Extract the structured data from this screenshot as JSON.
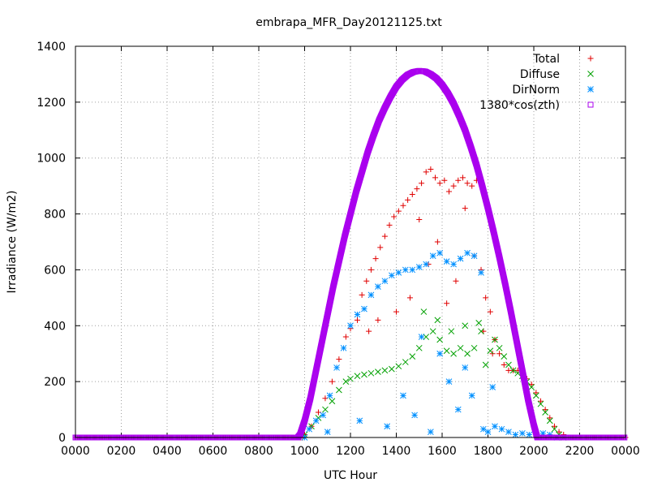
{
  "chart_data": {
    "type": "scatter",
    "title": "embrapa_MFR_Day20121125.txt",
    "xlabel": "UTC Hour",
    "ylabel": "Irradiance (W/m2)",
    "xlim": [
      0,
      24
    ],
    "ylim": [
      0,
      1400
    ],
    "x_ticks": [
      {
        "value": 0,
        "label": "0000"
      },
      {
        "value": 2,
        "label": "0200"
      },
      {
        "value": 4,
        "label": "0400"
      },
      {
        "value": 6,
        "label": "0600"
      },
      {
        "value": 8,
        "label": "0800"
      },
      {
        "value": 10,
        "label": "1000"
      },
      {
        "value": 12,
        "label": "1200"
      },
      {
        "value": 14,
        "label": "1400"
      },
      {
        "value": 16,
        "label": "1600"
      },
      {
        "value": 18,
        "label": "1800"
      },
      {
        "value": 20,
        "label": "2000"
      },
      {
        "value": 22,
        "label": "2200"
      },
      {
        "value": 24,
        "label": "0000"
      }
    ],
    "y_ticks": [
      0,
      200,
      400,
      600,
      800,
      1000,
      1200,
      1400
    ],
    "grid": true,
    "legend_position": "top-right",
    "series": [
      {
        "name": "Total",
        "color": "#e00000",
        "marker": "plus",
        "points": [
          [
            10.0,
            10
          ],
          [
            10.3,
            40
          ],
          [
            10.6,
            90
          ],
          [
            10.9,
            140
          ],
          [
            11.2,
            200
          ],
          [
            11.5,
            280
          ],
          [
            11.8,
            360
          ],
          [
            12.0,
            390
          ],
          [
            12.3,
            420
          ],
          [
            12.5,
            510
          ],
          [
            12.7,
            560
          ],
          [
            12.9,
            600
          ],
          [
            13.1,
            640
          ],
          [
            13.3,
            680
          ],
          [
            13.5,
            720
          ],
          [
            13.7,
            760
          ],
          [
            13.9,
            790
          ],
          [
            14.1,
            810
          ],
          [
            14.3,
            830
          ],
          [
            14.5,
            850
          ],
          [
            14.7,
            870
          ],
          [
            14.9,
            890
          ],
          [
            15.1,
            910
          ],
          [
            15.3,
            950
          ],
          [
            15.5,
            960
          ],
          [
            15.7,
            930
          ],
          [
            15.9,
            910
          ],
          [
            16.1,
            920
          ],
          [
            16.3,
            880
          ],
          [
            16.5,
            900
          ],
          [
            16.7,
            920
          ],
          [
            16.9,
            930
          ],
          [
            17.1,
            910
          ],
          [
            17.3,
            900
          ],
          [
            17.5,
            920
          ],
          [
            17.7,
            600
          ],
          [
            17.9,
            500
          ],
          [
            18.1,
            450
          ],
          [
            18.3,
            350
          ],
          [
            18.5,
            300
          ],
          [
            18.7,
            260
          ],
          [
            18.9,
            240
          ],
          [
            19.1,
            240
          ],
          [
            19.3,
            240
          ],
          [
            19.5,
            230
          ],
          [
            19.7,
            210
          ],
          [
            19.9,
            190
          ],
          [
            20.1,
            160
          ],
          [
            20.3,
            130
          ],
          [
            20.5,
            100
          ],
          [
            20.7,
            70
          ],
          [
            20.9,
            40
          ],
          [
            21.1,
            20
          ],
          [
            21.3,
            10
          ],
          [
            21.5,
            0
          ],
          [
            12.8,
            380
          ],
          [
            13.2,
            420
          ],
          [
            14.0,
            450
          ],
          [
            14.6,
            500
          ],
          [
            15.0,
            780
          ],
          [
            15.4,
            620
          ],
          [
            15.8,
            700
          ],
          [
            16.2,
            480
          ],
          [
            16.6,
            560
          ],
          [
            17.0,
            820
          ],
          [
            17.4,
            650
          ],
          [
            17.8,
            380
          ],
          [
            18.2,
            300
          ]
        ]
      },
      {
        "name": "Diffuse",
        "color": "#00a000",
        "marker": "cross",
        "points": [
          [
            10.0,
            10
          ],
          [
            10.3,
            40
          ],
          [
            10.6,
            70
          ],
          [
            10.9,
            100
          ],
          [
            11.2,
            130
          ],
          [
            11.5,
            170
          ],
          [
            11.8,
            200
          ],
          [
            12.0,
            210
          ],
          [
            12.3,
            220
          ],
          [
            12.6,
            225
          ],
          [
            12.9,
            230
          ],
          [
            13.2,
            235
          ],
          [
            13.5,
            240
          ],
          [
            13.8,
            245
          ],
          [
            14.1,
            255
          ],
          [
            14.4,
            270
          ],
          [
            14.7,
            290
          ],
          [
            15.0,
            320
          ],
          [
            15.3,
            360
          ],
          [
            15.6,
            380
          ],
          [
            15.9,
            350
          ],
          [
            16.2,
            310
          ],
          [
            16.5,
            300
          ],
          [
            16.8,
            320
          ],
          [
            17.1,
            300
          ],
          [
            17.4,
            320
          ],
          [
            17.7,
            380
          ],
          [
            17.9,
            260
          ],
          [
            18.1,
            310
          ],
          [
            18.3,
            350
          ],
          [
            18.5,
            320
          ],
          [
            18.7,
            290
          ],
          [
            18.9,
            260
          ],
          [
            19.1,
            240
          ],
          [
            19.3,
            230
          ],
          [
            19.5,
            220
          ],
          [
            19.7,
            200
          ],
          [
            19.9,
            180
          ],
          [
            20.1,
            150
          ],
          [
            20.3,
            120
          ],
          [
            20.5,
            90
          ],
          [
            20.7,
            60
          ],
          [
            20.9,
            30
          ],
          [
            21.1,
            10
          ],
          [
            21.3,
            0
          ],
          [
            15.2,
            450
          ],
          [
            15.8,
            420
          ],
          [
            16.4,
            380
          ],
          [
            17.0,
            400
          ],
          [
            17.6,
            410
          ]
        ]
      },
      {
        "name": "DirNorm",
        "color": "#0090ff",
        "marker": "star",
        "points": [
          [
            10.0,
            0
          ],
          [
            10.2,
            30
          ],
          [
            10.5,
            60
          ],
          [
            10.8,
            80
          ],
          [
            11.1,
            150
          ],
          [
            11.4,
            250
          ],
          [
            11.7,
            320
          ],
          [
            12.0,
            400
          ],
          [
            12.3,
            440
          ],
          [
            12.6,
            460
          ],
          [
            12.9,
            510
          ],
          [
            13.2,
            540
          ],
          [
            13.5,
            560
          ],
          [
            13.8,
            580
          ],
          [
            14.1,
            590
          ],
          [
            14.4,
            600
          ],
          [
            14.7,
            600
          ],
          [
            15.0,
            610
          ],
          [
            15.3,
            620
          ],
          [
            15.6,
            650
          ],
          [
            15.9,
            660
          ],
          [
            16.2,
            630
          ],
          [
            16.5,
            620
          ],
          [
            16.8,
            640
          ],
          [
            17.1,
            660
          ],
          [
            17.4,
            650
          ],
          [
            17.7,
            590
          ],
          [
            18.0,
            20
          ],
          [
            18.3,
            40
          ],
          [
            18.6,
            30
          ],
          [
            18.9,
            20
          ],
          [
            19.2,
            10
          ],
          [
            19.5,
            15
          ],
          [
            19.8,
            10
          ],
          [
            20.1,
            10
          ],
          [
            20.4,
            15
          ],
          [
            20.7,
            10
          ],
          [
            21.0,
            0
          ],
          [
            11.0,
            20
          ],
          [
            12.4,
            60
          ],
          [
            13.6,
            40
          ],
          [
            14.3,
            150
          ],
          [
            14.8,
            80
          ],
          [
            15.1,
            360
          ],
          [
            15.5,
            20
          ],
          [
            15.9,
            300
          ],
          [
            16.3,
            200
          ],
          [
            16.7,
            100
          ],
          [
            17.0,
            250
          ],
          [
            17.3,
            150
          ],
          [
            17.8,
            30
          ],
          [
            18.2,
            180
          ]
        ]
      },
      {
        "name": "1380*cos(zth)",
        "color": "#aa00ee",
        "marker": "square",
        "points": [
          [
            9.7,
            0
          ],
          [
            9.8,
            10
          ],
          [
            10.0,
            60
          ],
          [
            10.25,
            140
          ],
          [
            10.5,
            240
          ],
          [
            10.75,
            340
          ],
          [
            11.0,
            440
          ],
          [
            11.25,
            540
          ],
          [
            11.5,
            630
          ],
          [
            11.75,
            720
          ],
          [
            12.0,
            800
          ],
          [
            12.25,
            880
          ],
          [
            12.5,
            950
          ],
          [
            12.75,
            1020
          ],
          [
            13.0,
            1080
          ],
          [
            13.25,
            1135
          ],
          [
            13.5,
            1180
          ],
          [
            13.75,
            1220
          ],
          [
            14.0,
            1255
          ],
          [
            14.25,
            1280
          ],
          [
            14.5,
            1298
          ],
          [
            14.75,
            1308
          ],
          [
            15.0,
            1312
          ],
          [
            15.25,
            1310
          ],
          [
            15.5,
            1300
          ],
          [
            15.75,
            1285
          ],
          [
            16.0,
            1262
          ],
          [
            16.25,
            1232
          ],
          [
            16.5,
            1195
          ],
          [
            16.75,
            1150
          ],
          [
            17.0,
            1100
          ],
          [
            17.25,
            1040
          ],
          [
            17.5,
            975
          ],
          [
            17.75,
            900
          ],
          [
            18.0,
            820
          ],
          [
            18.25,
            735
          ],
          [
            18.5,
            645
          ],
          [
            18.75,
            550
          ],
          [
            19.0,
            450
          ],
          [
            19.25,
            345
          ],
          [
            19.5,
            240
          ],
          [
            19.75,
            135
          ],
          [
            20.0,
            45
          ],
          [
            20.15,
            0
          ]
        ]
      }
    ]
  }
}
